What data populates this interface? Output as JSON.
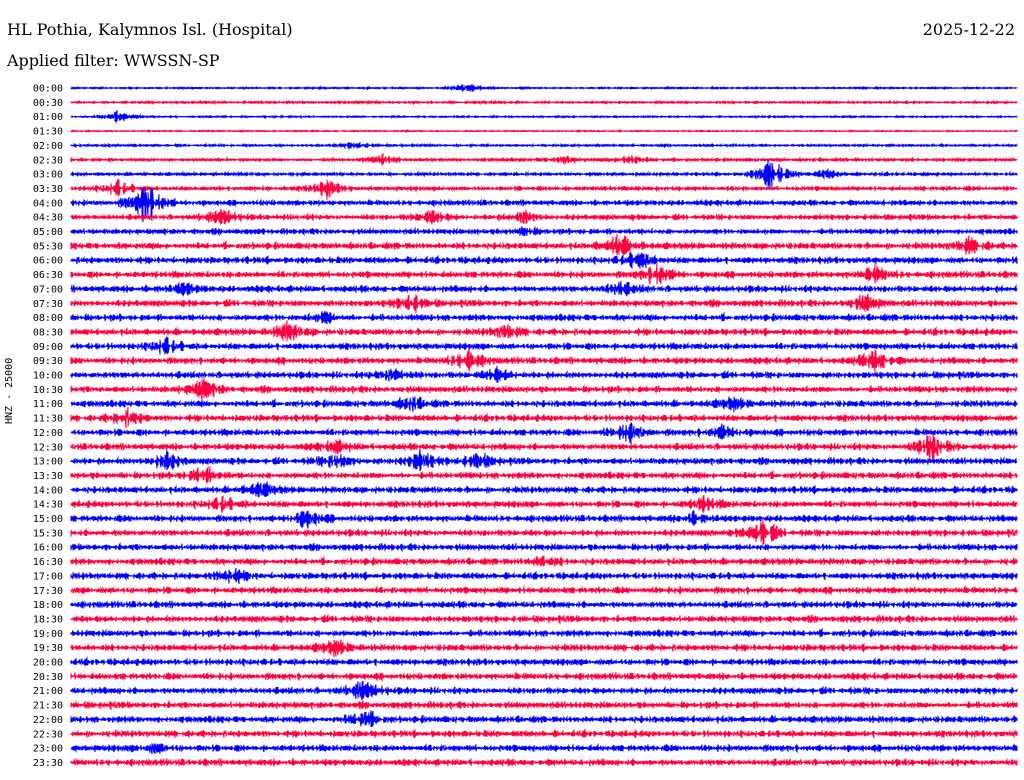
{
  "header": {
    "station": "HL Pothia, Kalymnos Isl. (Hospital)",
    "date": "2025-12-22",
    "filter": "Applied filter: WWSSN-SP"
  },
  "chart_data": {
    "type": "line",
    "title": "HL Pothia, Kalymnos Isl. (Hospital)",
    "ylabel": "HNZ - 25000",
    "tick_labels": [
      "00:00",
      "00:30",
      "01:00",
      "01:30",
      "02:00",
      "02:30",
      "03:00",
      "03:30",
      "04:00",
      "04:30",
      "05:00",
      "05:30",
      "06:00",
      "06:30",
      "07:00",
      "07:30",
      "08:00",
      "08:30",
      "09:00",
      "09:30",
      "10:00",
      "10:30",
      "11:00",
      "11:30",
      "12:00",
      "12:30",
      "13:00",
      "13:30",
      "14:00",
      "14:30",
      "15:00",
      "15:30",
      "16:00",
      "16:30",
      "17:00",
      "17:30",
      "18:00",
      "18:30",
      "19:00",
      "19:30",
      "20:00",
      "20:30",
      "21:00",
      "21:30",
      "22:00",
      "22:30",
      "23:00",
      "23:30"
    ],
    "series_colors": [
      "#0000ff",
      "#ff0040"
    ],
    "noise_level": [
      0.8,
      1,
      0.8,
      0.6,
      1,
      1.5,
      1.5,
      2,
      2.5,
      2.5,
      2.5,
      3,
      3,
      3,
      3,
      3,
      3,
      3,
      3,
      3,
      3,
      3,
      3,
      3,
      3,
      3,
      3,
      3,
      3,
      3,
      3,
      3,
      3,
      3,
      3,
      3,
      3,
      3,
      3,
      3,
      3,
      3,
      3,
      3,
      3,
      3,
      3,
      3
    ],
    "events": [
      [
        0,
        0.42,
        5
      ],
      [
        1,
        0.3,
        1
      ],
      [
        2,
        0.05,
        6
      ],
      [
        4,
        0.3,
        4
      ],
      [
        5,
        0.33,
        5
      ],
      [
        5,
        0.59,
        6
      ],
      [
        5,
        0.52,
        4
      ],
      [
        6,
        0.74,
        18
      ],
      [
        6,
        0.8,
        5
      ],
      [
        7,
        0.05,
        8
      ],
      [
        7,
        0.27,
        10
      ],
      [
        8,
        0.08,
        25
      ],
      [
        9,
        0.16,
        10
      ],
      [
        9,
        0.38,
        8
      ],
      [
        9,
        0.48,
        7
      ],
      [
        10,
        0.48,
        4
      ],
      [
        11,
        0.58,
        12
      ],
      [
        11,
        0.95,
        8
      ],
      [
        12,
        0.6,
        10
      ],
      [
        13,
        0.62,
        12
      ],
      [
        13,
        0.85,
        8
      ],
      [
        14,
        0.58,
        8
      ],
      [
        14,
        0.12,
        6
      ],
      [
        15,
        0.36,
        10
      ],
      [
        15,
        0.84,
        9
      ],
      [
        16,
        0.27,
        6
      ],
      [
        17,
        0.23,
        10
      ],
      [
        17,
        0.46,
        7
      ],
      [
        18,
        0.1,
        8
      ],
      [
        19,
        0.42,
        12
      ],
      [
        19,
        0.85,
        11
      ],
      [
        20,
        0.34,
        8
      ],
      [
        20,
        0.45,
        7
      ],
      [
        21,
        0.14,
        12
      ],
      [
        22,
        0.36,
        7
      ],
      [
        22,
        0.7,
        6
      ],
      [
        23,
        0.06,
        8
      ],
      [
        24,
        0.59,
        10
      ],
      [
        24,
        0.69,
        8
      ],
      [
        25,
        0.28,
        6
      ],
      [
        25,
        0.91,
        16
      ],
      [
        26,
        0.1,
        10
      ],
      [
        26,
        0.28,
        8
      ],
      [
        26,
        0.37,
        11
      ],
      [
        26,
        0.43,
        9
      ],
      [
        27,
        0.14,
        10
      ],
      [
        28,
        0.2,
        8
      ],
      [
        29,
        0.16,
        7
      ],
      [
        29,
        0.67,
        7
      ],
      [
        30,
        0.25,
        10
      ],
      [
        30,
        0.66,
        6
      ],
      [
        31,
        0.73,
        16
      ],
      [
        33,
        0.5,
        6
      ],
      [
        34,
        0.17,
        9
      ],
      [
        39,
        0.28,
        8
      ],
      [
        42,
        0.31,
        12
      ],
      [
        44,
        0.31,
        10
      ],
      [
        46,
        0.09,
        5
      ]
    ]
  }
}
